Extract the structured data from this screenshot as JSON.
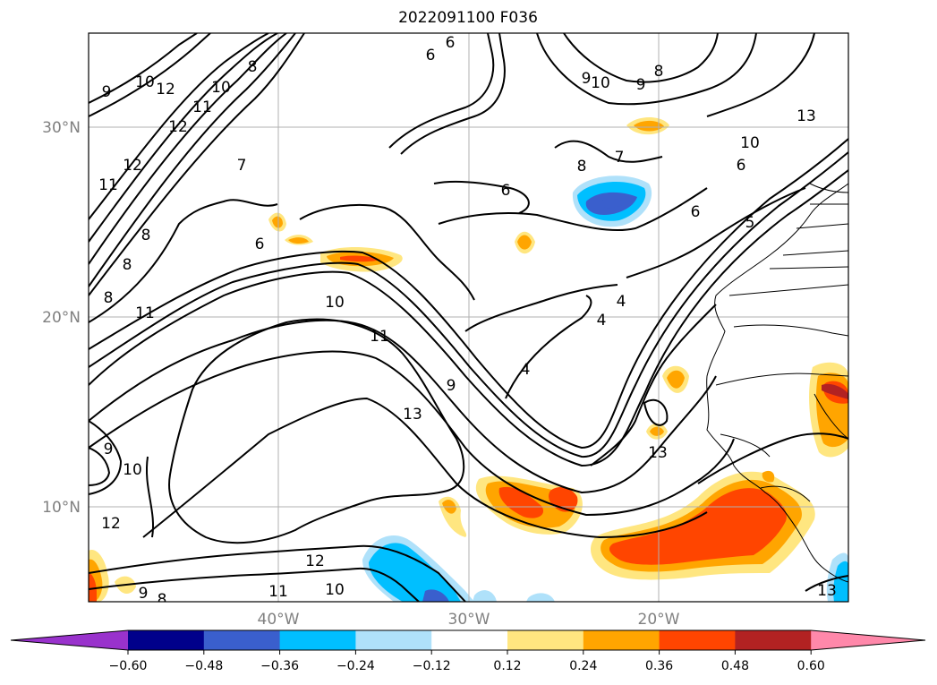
{
  "title": "2022091100 F036",
  "map": {
    "lat_labels": [
      "30°N",
      "20°N",
      "10°N"
    ],
    "lon_labels": [
      "40°W",
      "30°W",
      "20°W"
    ],
    "lat_values": [
      30,
      20,
      10
    ],
    "lon_values": [
      -40,
      -30,
      -20
    ],
    "extent": {
      "lon_min": -50,
      "lon_max": -10,
      "lat_min": 5,
      "lat_max": 35
    },
    "gridlines": true,
    "contour_labels": [
      "6",
      "6",
      "9",
      "10",
      "12",
      "10",
      "11",
      "12",
      "12",
      "11",
      "8",
      "8",
      "8",
      "8",
      "9",
      "10",
      "9",
      "8",
      "7",
      "7",
      "8",
      "6",
      "6",
      "6",
      "5",
      "10",
      "13",
      "6",
      "11",
      "10",
      "11",
      "9",
      "13",
      "4",
      "4",
      "4",
      "13",
      "9",
      "10",
      "12",
      "12",
      "11",
      "10",
      "9",
      "8",
      "13"
    ]
  },
  "colorbar": {
    "ticks": [
      "−0.60",
      "−0.48",
      "−0.36",
      "−0.24",
      "−0.12",
      "0.12",
      "0.24",
      "0.36",
      "0.48",
      "0.60"
    ],
    "under_color": "#9932cc",
    "bin_colors": [
      "#00008b",
      "#3a5fcd",
      "#00bfff",
      "#afe1fa",
      "#ffffff",
      "#ffe680",
      "#ffa500",
      "#ff4500",
      "#b22222"
    ],
    "over_color": "#ff88aa"
  }
}
